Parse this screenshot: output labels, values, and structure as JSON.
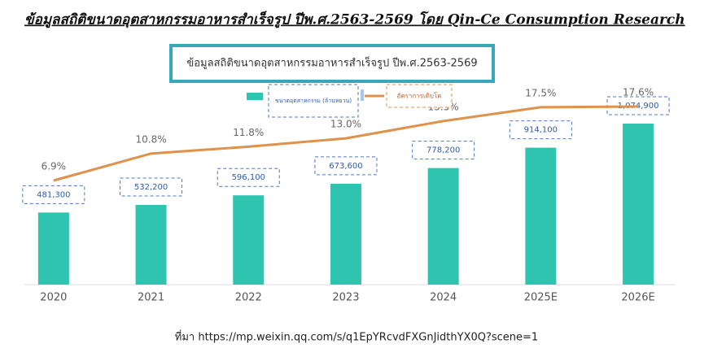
{
  "chart_data": {
    "type": "bar",
    "title": "ข้อมูลสถิติขนาดอุตสาหกรรมอาหารสำเร็จรูป ปีพ.ศ.2563-2569 โดย Qin-Ce Consumption Research",
    "subtitle": "ข้อมูลสถิติขนาดอุตสาหกรรมอาหารสำเร็จรูป ปีพ.ศ.2563-2569",
    "source": "ที่มา https://mp.weixin.qq.com/s/q1EpYRcvdFXGnJidthYX0Q?scene=1",
    "categories": [
      "2020",
      "2021",
      "2022",
      "2023",
      "2024",
      "2025E",
      "2026E"
    ],
    "series": [
      {
        "name": "ขนาดอุตสาหกรรม (ล้านหยวน)",
        "type": "bar",
        "color": "#2ec4b0",
        "values": [
          481300,
          532200,
          596100,
          673600,
          778200,
          914100,
          1074900
        ],
        "value_labels": [
          "481,300",
          "532,200",
          "596,100",
          "673,600",
          "778,200",
          "914,100",
          "1,074,900"
        ]
      },
      {
        "name": "อัตราการเติบโต",
        "type": "line",
        "axis": "y2",
        "color": "#e0914a",
        "values": [
          6.9,
          10.8,
          11.8,
          13.0,
          15.5,
          17.5,
          17.6
        ],
        "value_labels": [
          "6.9%",
          "10.8%",
          "11.8%",
          "13.0%",
          "15.5%",
          "17.5%",
          "17.6%"
        ]
      }
    ]
  }
}
